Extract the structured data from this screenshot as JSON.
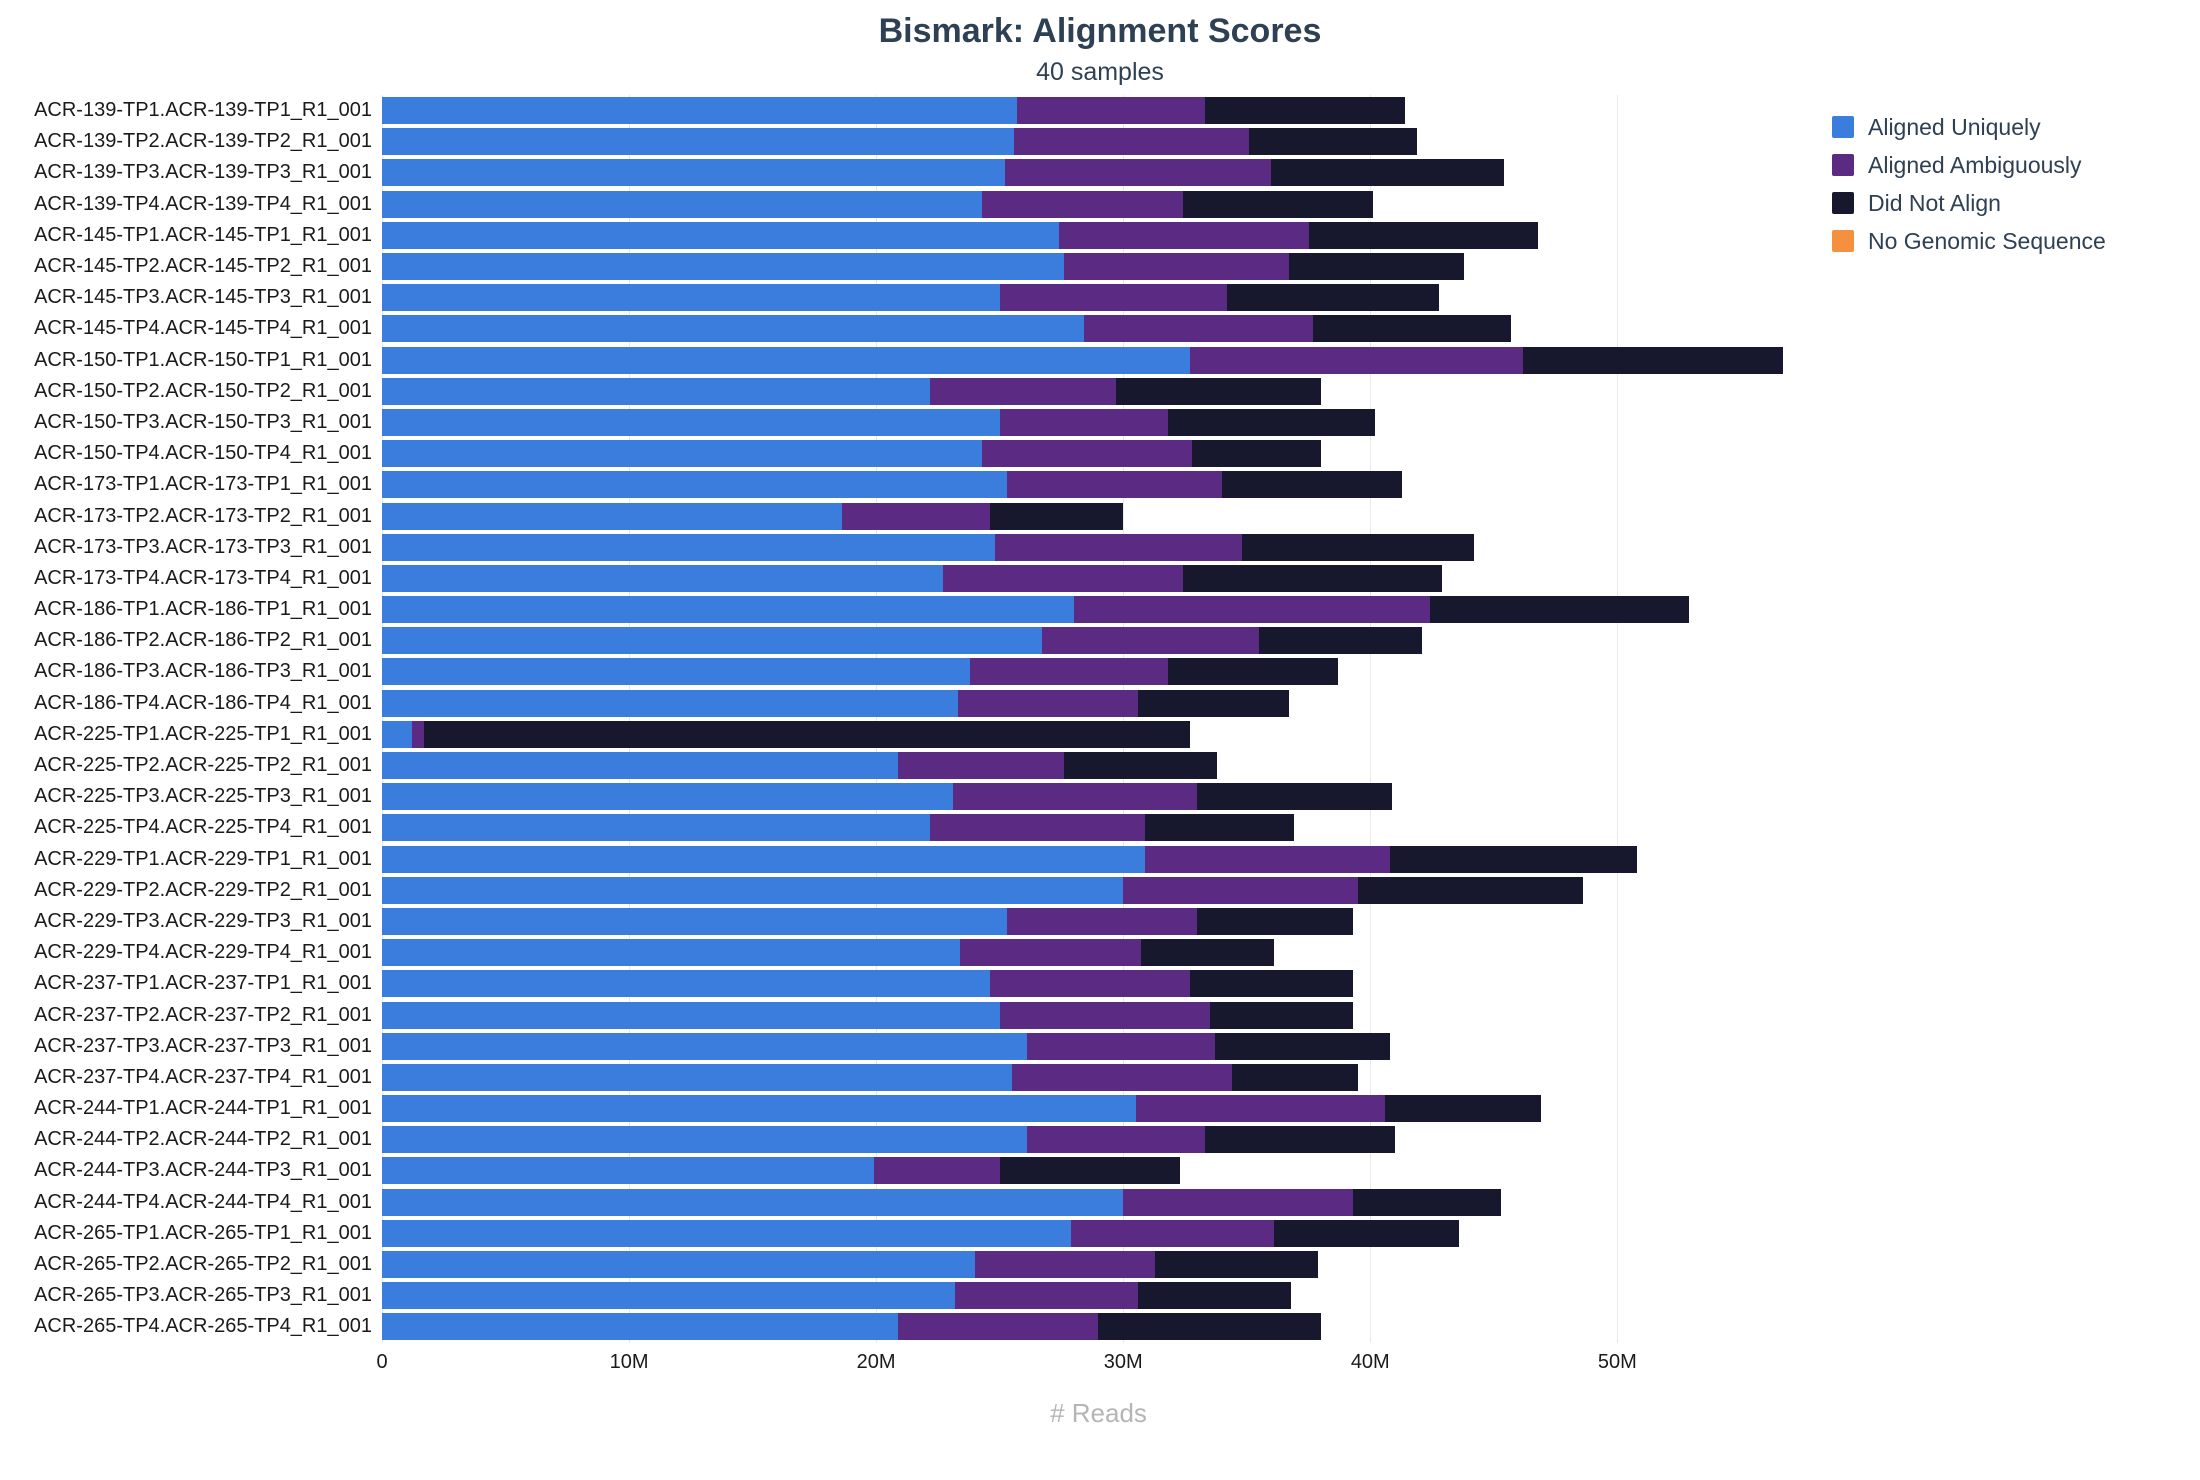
{
  "title": "Bismark: Alignment Scores",
  "subtitle": "40 samples",
  "xlabel": "# Reads",
  "legend": [
    {
      "label": "Aligned Uniquely",
      "color": "#3b7ddd"
    },
    {
      "label": "Aligned Ambiguously",
      "color": "#5b2a83"
    },
    {
      "label": "Did Not Align",
      "color": "#17182e"
    },
    {
      "label": "No Genomic Sequence",
      "color": "#f5903f"
    }
  ],
  "chart_data": {
    "type": "bar",
    "orientation": "horizontal",
    "stacked": true,
    "title": "Bismark: Alignment Scores",
    "subtitle": "40 samples",
    "xlabel": "# Reads",
    "units": "millions of reads",
    "grid": true,
    "legend_position": "top-right",
    "xlim": [
      0,
      58
    ],
    "xticks": [
      {
        "value": 0,
        "label": "0"
      },
      {
        "value": 10,
        "label": "10M"
      },
      {
        "value": 20,
        "label": "20M"
      },
      {
        "value": 30,
        "label": "30M"
      },
      {
        "value": 40,
        "label": "40M"
      },
      {
        "value": 50,
        "label": "50M"
      }
    ],
    "categories": [
      "ACR-139-TP1.ACR-139-TP1_R1_001",
      "ACR-139-TP2.ACR-139-TP2_R1_001",
      "ACR-139-TP3.ACR-139-TP3_R1_001",
      "ACR-139-TP4.ACR-139-TP4_R1_001",
      "ACR-145-TP1.ACR-145-TP1_R1_001",
      "ACR-145-TP2.ACR-145-TP2_R1_001",
      "ACR-145-TP3.ACR-145-TP3_R1_001",
      "ACR-145-TP4.ACR-145-TP4_R1_001",
      "ACR-150-TP1.ACR-150-TP1_R1_001",
      "ACR-150-TP2.ACR-150-TP2_R1_001",
      "ACR-150-TP3.ACR-150-TP3_R1_001",
      "ACR-150-TP4.ACR-150-TP4_R1_001",
      "ACR-173-TP1.ACR-173-TP1_R1_001",
      "ACR-173-TP2.ACR-173-TP2_R1_001",
      "ACR-173-TP3.ACR-173-TP3_R1_001",
      "ACR-173-TP4.ACR-173-TP4_R1_001",
      "ACR-186-TP1.ACR-186-TP1_R1_001",
      "ACR-186-TP2.ACR-186-TP2_R1_001",
      "ACR-186-TP3.ACR-186-TP3_R1_001",
      "ACR-186-TP4.ACR-186-TP4_R1_001",
      "ACR-225-TP1.ACR-225-TP1_R1_001",
      "ACR-225-TP2.ACR-225-TP2_R1_001",
      "ACR-225-TP3.ACR-225-TP3_R1_001",
      "ACR-225-TP4.ACR-225-TP4_R1_001",
      "ACR-229-TP1.ACR-229-TP1_R1_001",
      "ACR-229-TP2.ACR-229-TP2_R1_001",
      "ACR-229-TP3.ACR-229-TP3_R1_001",
      "ACR-229-TP4.ACR-229-TP4_R1_001",
      "ACR-237-TP1.ACR-237-TP1_R1_001",
      "ACR-237-TP2.ACR-237-TP2_R1_001",
      "ACR-237-TP3.ACR-237-TP3_R1_001",
      "ACR-237-TP4.ACR-237-TP4_R1_001",
      "ACR-244-TP1.ACR-244-TP1_R1_001",
      "ACR-244-TP2.ACR-244-TP2_R1_001",
      "ACR-244-TP3.ACR-244-TP3_R1_001",
      "ACR-244-TP4.ACR-244-TP4_R1_001",
      "ACR-265-TP1.ACR-265-TP1_R1_001",
      "ACR-265-TP2.ACR-265-TP2_R1_001",
      "ACR-265-TP3.ACR-265-TP3_R1_001",
      "ACR-265-TP4.ACR-265-TP4_R1_001"
    ],
    "series": [
      {
        "name": "Aligned Uniquely",
        "color": "#3b7ddd",
        "values": [
          25.7,
          25.6,
          25.2,
          24.3,
          27.4,
          27.6,
          25.0,
          28.4,
          32.7,
          22.2,
          25.0,
          24.3,
          25.3,
          18.6,
          24.8,
          22.7,
          28.0,
          26.7,
          23.8,
          23.3,
          1.2,
          20.9,
          23.1,
          22.2,
          30.9,
          30.0,
          25.3,
          23.4,
          24.6,
          25.0,
          26.1,
          25.5,
          30.5,
          26.1,
          19.9,
          30.0,
          27.9,
          24.0,
          23.2,
          20.9
        ]
      },
      {
        "name": "Aligned Ambiguously",
        "color": "#5b2a83",
        "values": [
          7.6,
          9.5,
          10.8,
          8.1,
          10.1,
          9.1,
          9.2,
          9.3,
          13.5,
          7.5,
          6.8,
          8.5,
          8.7,
          6.0,
          10.0,
          9.7,
          14.4,
          8.8,
          8.0,
          7.3,
          0.5,
          6.7,
          9.9,
          8.7,
          9.9,
          9.5,
          7.7,
          7.3,
          8.1,
          8.5,
          7.6,
          8.9,
          10.1,
          7.2,
          5.1,
          9.3,
          8.2,
          7.3,
          7.4,
          8.1
        ]
      },
      {
        "name": "Did Not Align",
        "color": "#17182e",
        "values": [
          8.1,
          6.8,
          9.4,
          7.7,
          9.3,
          7.1,
          8.6,
          8.0,
          10.5,
          8.3,
          8.4,
          5.2,
          7.3,
          5.4,
          9.4,
          10.5,
          10.5,
          6.6,
          6.9,
          6.1,
          31.0,
          6.2,
          7.9,
          6.0,
          10.0,
          9.1,
          6.3,
          5.4,
          6.6,
          5.8,
          7.1,
          5.1,
          6.3,
          7.7,
          7.3,
          6.0,
          7.5,
          6.6,
          6.2,
          9.0
        ]
      },
      {
        "name": "No Genomic Sequence",
        "color": "#f5903f",
        "values": [
          0,
          0,
          0,
          0,
          0,
          0,
          0,
          0,
          0,
          0,
          0,
          0,
          0,
          0,
          0,
          0,
          0,
          0,
          0,
          0,
          0,
          0,
          0,
          0,
          0,
          0,
          0,
          0,
          0,
          0,
          0,
          0,
          0,
          0,
          0,
          0,
          0,
          0,
          0,
          0
        ]
      }
    ]
  }
}
